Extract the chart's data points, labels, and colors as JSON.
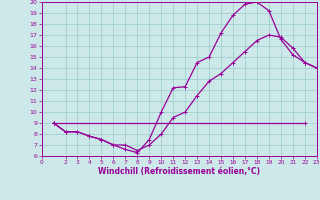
{
  "xlabel": "Windchill (Refroidissement éolien,°C)",
  "bg_color": "#cce8e8",
  "grid_color": "#99cccc",
  "line_color": "#990099",
  "xlim": [
    0,
    23
  ],
  "ylim": [
    6,
    20
  ],
  "xticks": [
    0,
    2,
    3,
    4,
    5,
    6,
    7,
    8,
    9,
    10,
    11,
    12,
    13,
    14,
    15,
    16,
    17,
    18,
    19,
    20,
    21,
    22,
    23
  ],
  "yticks": [
    6,
    7,
    8,
    9,
    10,
    11,
    12,
    13,
    14,
    15,
    16,
    17,
    18,
    19,
    20
  ],
  "line1_x": [
    1,
    2,
    3,
    4,
    5,
    6,
    7,
    8,
    9,
    10,
    11,
    12,
    13,
    14,
    15,
    16,
    17,
    18,
    19,
    20,
    21,
    22,
    23
  ],
  "line1_y": [
    9.0,
    8.2,
    8.2,
    7.8,
    7.5,
    7.0,
    6.6,
    6.3,
    7.5,
    10.0,
    12.2,
    12.3,
    14.5,
    15.0,
    17.2,
    18.8,
    19.8,
    20.0,
    19.2,
    16.6,
    15.2,
    14.5,
    14.0
  ],
  "line2_x": [
    1,
    2,
    3,
    4,
    5,
    6,
    7,
    8,
    9,
    10,
    11,
    12,
    13,
    14,
    15,
    16,
    17,
    18,
    19,
    20,
    21,
    22,
    23
  ],
  "line2_y": [
    9.0,
    8.2,
    8.2,
    7.8,
    7.5,
    7.0,
    7.0,
    6.5,
    7.0,
    8.0,
    9.5,
    10.0,
    11.5,
    12.8,
    13.5,
    14.5,
    15.5,
    16.5,
    17.0,
    16.8,
    15.8,
    14.5,
    14.0
  ],
  "line3_x": [
    1,
    22
  ],
  "line3_y": [
    9.0,
    9.0
  ]
}
